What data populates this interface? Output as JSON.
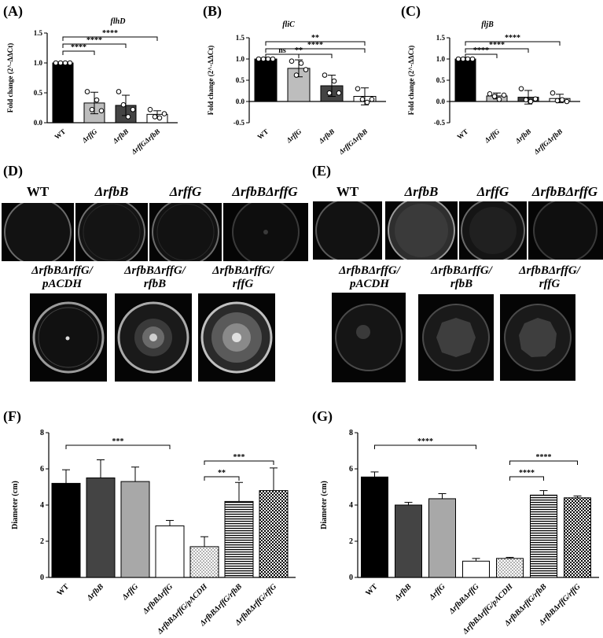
{
  "panels": {
    "A": "(A)",
    "B": "(B)",
    "C": "(C)",
    "D": "(D)",
    "E": "(E)",
    "F": "(F)",
    "G": "(G)"
  },
  "plates_D": {
    "top": [
      "WT",
      "ΔrfbB",
      "ΔrffG",
      "ΔrfbBΔrffG"
    ],
    "bottom": [
      [
        "ΔrfbBΔrffG/",
        "pACDH"
      ],
      [
        "ΔrfbBΔrffG/",
        "rfbB"
      ],
      [
        "ΔrfbBΔrffG/",
        "rffG"
      ]
    ]
  },
  "plates_E": {
    "top": [
      "WT",
      "ΔrfbB",
      "ΔrffG",
      "ΔrfbBΔrffG"
    ],
    "bottom": [
      [
        "ΔrfbBΔrffG/",
        "pACDH"
      ],
      [
        "ΔrfbBΔrffG/",
        "rfbB"
      ],
      [
        "ΔrfbBΔrffG/",
        "rffG"
      ]
    ]
  },
  "chart_data": [
    {
      "id": "A",
      "type": "bar",
      "title": "flhD",
      "ylabel": "Fold change (2^-ΔΔCt)",
      "ylim": [
        0,
        1.5
      ],
      "yticks": [
        "0.0",
        "0.5",
        "1.0",
        "1.5"
      ],
      "categories": [
        "WT",
        "ΔrffG",
        "ΔrfbB",
        "ΔrffGΔrfbB"
      ],
      "values": [
        1.0,
        0.33,
        0.29,
        0.14
      ],
      "errors": [
        0.0,
        0.18,
        0.17,
        0.06
      ],
      "points": [
        [
          1,
          1,
          1,
          1
        ],
        [
          0.52,
          0.22,
          0.38,
          0.2
        ],
        [
          0.52,
          0.3,
          0.1,
          0.22
        ],
        [
          0.22,
          0.1,
          0.08,
          0.15
        ]
      ],
      "fills": [
        "#000000",
        "#bdbdbd",
        "#444444",
        "#ffffff"
      ],
      "significance": [
        {
          "from": 0,
          "to": 1,
          "label": "****"
        },
        {
          "from": 0,
          "to": 2,
          "label": "****"
        },
        {
          "from": 0,
          "to": 3,
          "label": "****"
        }
      ]
    },
    {
      "id": "B",
      "type": "bar",
      "title": "fliC",
      "ylabel": "Fold change (2^-ΔΔCt)",
      "ylim": [
        -0.5,
        1.5
      ],
      "yticks": [
        "-0.5",
        "0.0",
        "0.5",
        "1.0",
        "1.5"
      ],
      "categories": [
        "WT",
        "ΔrffG",
        "ΔrfbB",
        "ΔrffGΔrfbB"
      ],
      "values": [
        1.0,
        0.78,
        0.37,
        0.12
      ],
      "errors": [
        0.0,
        0.2,
        0.25,
        0.2
      ],
      "points": [
        [
          1,
          1,
          1,
          1
        ],
        [
          0.95,
          0.62,
          0.9,
          0.75
        ],
        [
          0.62,
          0.2,
          0.48,
          0.2
        ],
        [
          0.3,
          0.05,
          -0.02,
          0.05
        ]
      ],
      "fills": [
        "#000000",
        "#bdbdbd",
        "#444444",
        "#ffffff"
      ],
      "significance": [
        {
          "from": 0,
          "to": 1,
          "label": "ns"
        },
        {
          "from": 0,
          "to": 2,
          "label": "**"
        },
        {
          "from": 0,
          "to": 3,
          "label": "****"
        },
        {
          "from": 0,
          "to": 3,
          "label": "**"
        }
      ]
    },
    {
      "id": "C",
      "type": "bar",
      "title": "fljB",
      "ylabel": "Fold change (2^-ΔΔCt)",
      "ylim": [
        -0.5,
        1.5
      ],
      "yticks": [
        "-0.5",
        "0.0",
        "0.5",
        "1.0",
        "1.5"
      ],
      "categories": [
        "WT",
        "ΔrffG",
        "ΔrfbB",
        "ΔrffGΔrfbB"
      ],
      "values": [
        1.0,
        0.13,
        0.1,
        0.07
      ],
      "errors": [
        0.0,
        0.07,
        0.16,
        0.1
      ],
      "points": [
        [
          1,
          1,
          1,
          1
        ],
        [
          0.18,
          0.12,
          0.05,
          0.15
        ],
        [
          0.3,
          0.04,
          0.0,
          0.06
        ],
        [
          0.2,
          0.02,
          0.04,
          0.0
        ]
      ],
      "fills": [
        "#000000",
        "#bdbdbd",
        "#444444",
        "#ffffff"
      ],
      "significance": [
        {
          "from": 0,
          "to": 1,
          "label": "****"
        },
        {
          "from": 0,
          "to": 2,
          "label": "****"
        },
        {
          "from": 0,
          "to": 3,
          "label": "****"
        }
      ]
    },
    {
      "id": "F",
      "type": "bar",
      "ylabel": "Diameter (cm)",
      "ylim": [
        0,
        8
      ],
      "yticks": [
        "0",
        "2",
        "4",
        "6",
        "8"
      ],
      "categories": [
        "WT",
        "ΔrfbB",
        "ΔrffG",
        "ΔrfbBΔrffG",
        "ΔrfbBΔrffG/pACDH",
        "ΔrfbBΔrffG/rfbB",
        "ΔrfbBΔrffG/rffG"
      ],
      "values": [
        5.2,
        5.5,
        5.3,
        2.85,
        1.7,
        4.2,
        4.8
      ],
      "errors": [
        0.75,
        1.0,
        0.8,
        0.3,
        0.55,
        1.05,
        1.25
      ],
      "fills": [
        "#000000",
        "#444444",
        "#a8a8a8",
        "#ffffff",
        "dots",
        "hlines",
        "checker"
      ],
      "significance": [
        {
          "from": 0,
          "to": 3,
          "label": "***"
        },
        {
          "from": 4,
          "to": 5,
          "label": "**"
        },
        {
          "from": 4,
          "to": 6,
          "label": "***"
        }
      ]
    },
    {
      "id": "G",
      "type": "bar",
      "ylabel": "Diameter (cm)",
      "ylim": [
        0,
        8
      ],
      "yticks": [
        "0",
        "2",
        "4",
        "6",
        "8"
      ],
      "categories": [
        "WT",
        "ΔrfbB",
        "ΔrffG",
        "ΔrfbBΔrffG",
        "ΔrfbBΔrffG/pACDH",
        "ΔrfbBΔrffG/rfbB",
        "ΔrfbBΔrffG/rffG"
      ],
      "values": [
        5.55,
        4.0,
        4.35,
        0.9,
        1.05,
        4.55,
        4.4
      ],
      "errors": [
        0.28,
        0.15,
        0.28,
        0.15,
        0.06,
        0.25,
        0.1
      ],
      "fills": [
        "#000000",
        "#444444",
        "#a8a8a8",
        "#ffffff",
        "dots",
        "hlines",
        "checker"
      ],
      "significance": [
        {
          "from": 0,
          "to": 3,
          "label": "****"
        },
        {
          "from": 4,
          "to": 5,
          "label": "****"
        },
        {
          "from": 4,
          "to": 6,
          "label": "****"
        }
      ]
    }
  ]
}
